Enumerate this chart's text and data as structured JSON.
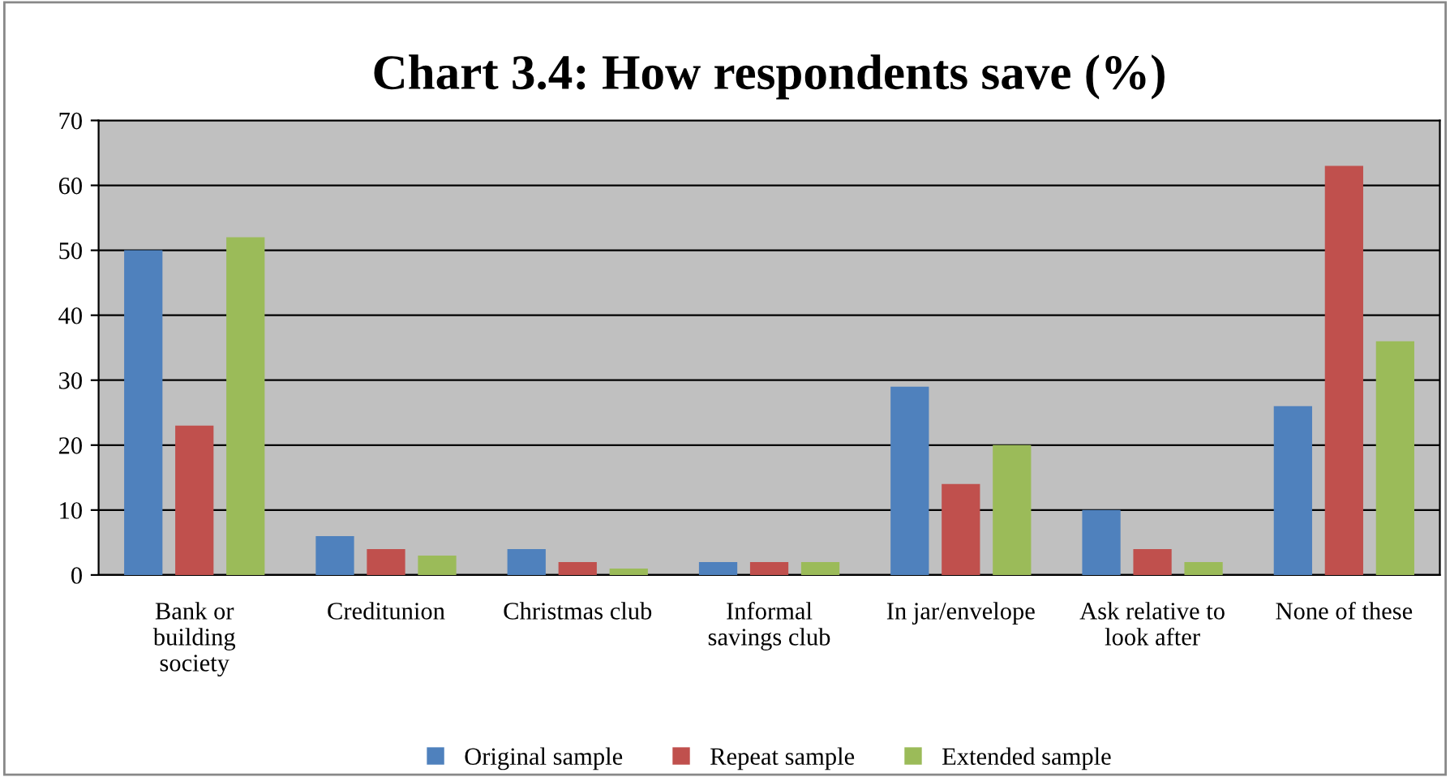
{
  "chart_data": {
    "type": "bar",
    "title": "Chart 3.4: How respondents save (%)",
    "categories": [
      "Bank or\nbuilding\nsociety",
      "Creditunion",
      "Christmas club",
      "Informal\nsavings club",
      "In jar/envelope",
      "Ask relative to\nlook after",
      "None of these"
    ],
    "series": [
      {
        "name": "Original sample",
        "color": "#4f81bd",
        "values": [
          50,
          6,
          4,
          2,
          29,
          10,
          26
        ]
      },
      {
        "name": "Repeat sample",
        "color": "#c0504d",
        "values": [
          23,
          4,
          2,
          2,
          14,
          4,
          63
        ]
      },
      {
        "name": "Extended sample",
        "color": "#9bbb59",
        "values": [
          52,
          3,
          1,
          2,
          20,
          2,
          36
        ]
      }
    ],
    "ylim": [
      0,
      70
    ],
    "yticks": [
      0,
      10,
      20,
      30,
      40,
      50,
      60,
      70
    ],
    "grid": "y",
    "legend": "bottom"
  }
}
